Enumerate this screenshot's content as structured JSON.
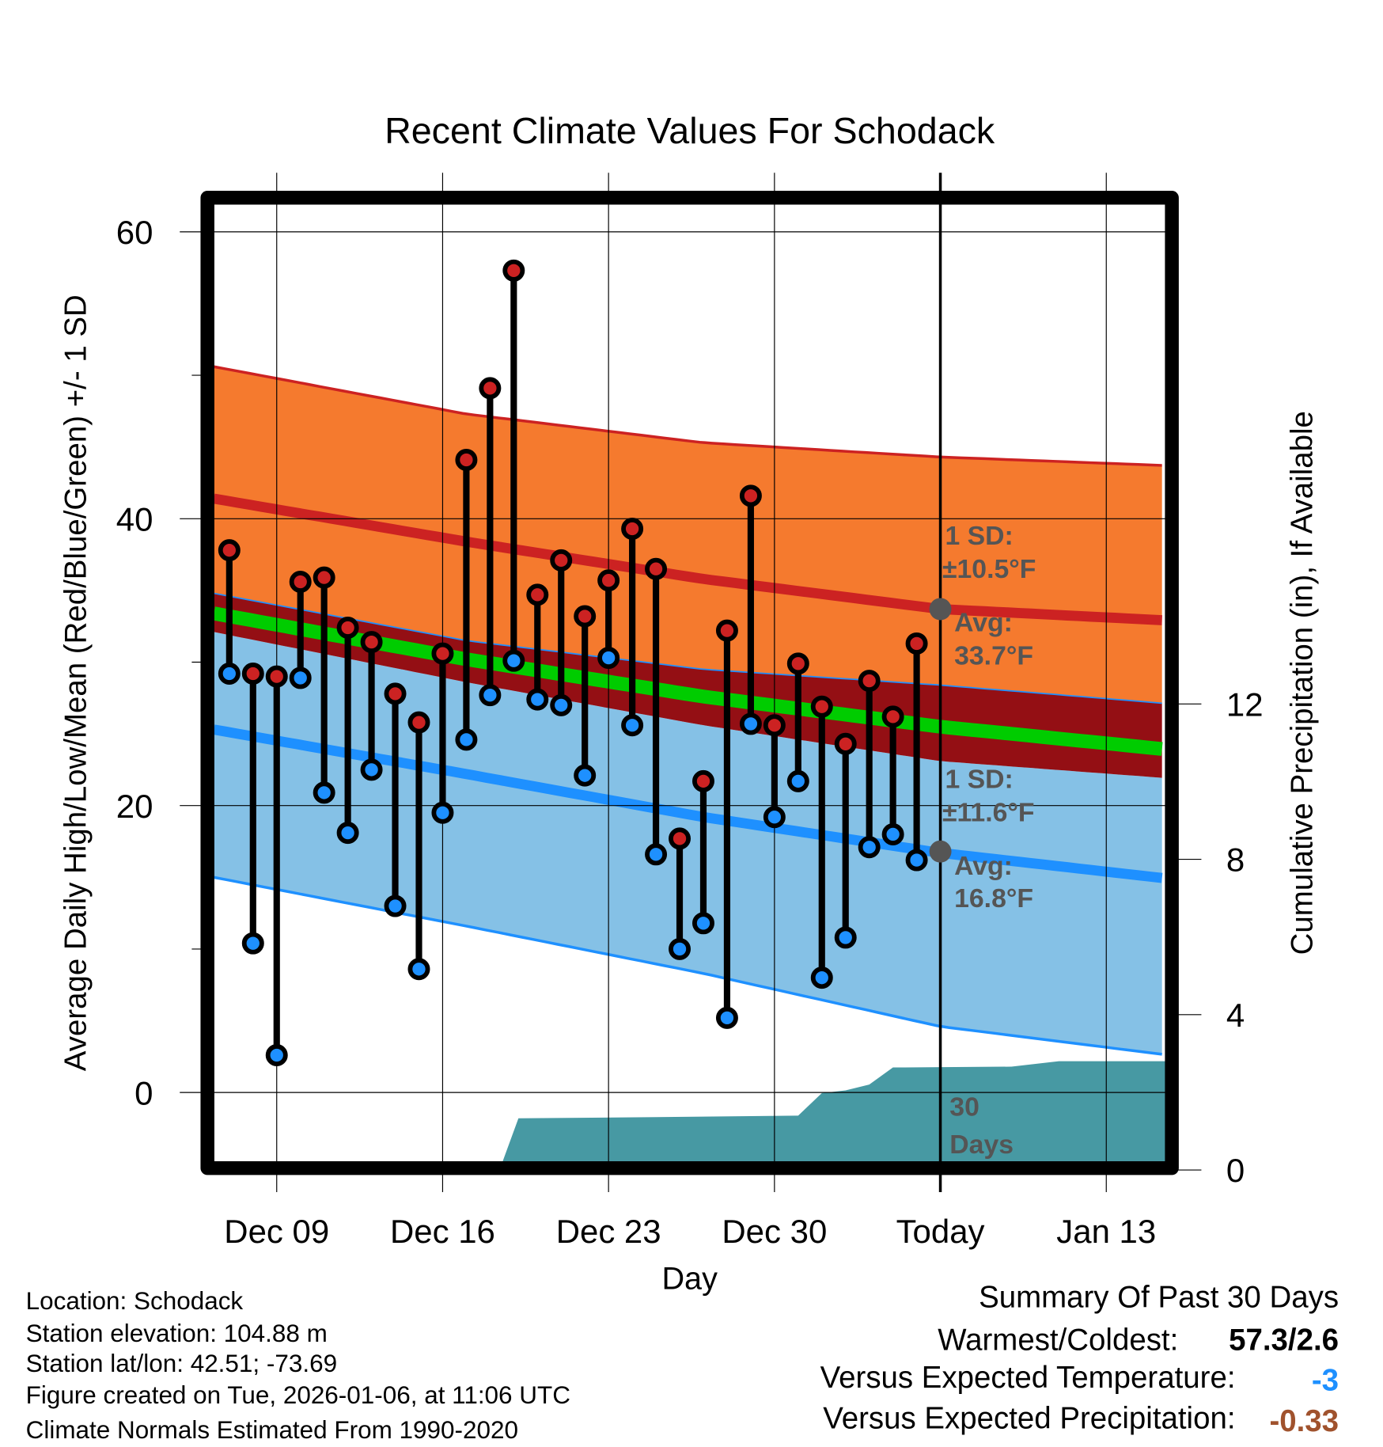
{
  "chart_data": {
    "type": "line",
    "title": "Recent Climate Values For Schodack",
    "xlabel": "Day",
    "ylabel": "Average Daily High/Low/Mean (Red/Blue/Green) +/- 1 SD",
    "y2label": "Cumulative Precipitation (in), If Available",
    "ylim": [
      -4.9,
      64
    ],
    "y2lim": [
      0,
      16.4
    ],
    "yticks": [
      "0",
      "20",
      "40",
      "60"
    ],
    "ytick_values": [
      0,
      20,
      40,
      60
    ],
    "y2ticks": [
      "0",
      "4",
      "8",
      "12"
    ],
    "y2tick_values": [
      0,
      4,
      8,
      12
    ],
    "x_day_range": [
      -0.65,
      39.65
    ],
    "xticks": [
      {
        "label": "Dec 09",
        "day": 2
      },
      {
        "label": "Dec 16",
        "day": 9
      },
      {
        "label": "Dec 23",
        "day": 16
      },
      {
        "label": "Dec 30",
        "day": 23
      },
      {
        "label": "Today",
        "day": 30
      },
      {
        "label": "Jan 13",
        "day": 37
      }
    ],
    "days": [
      "Dec 07",
      "Dec 08",
      "Dec 09",
      "Dec 10",
      "Dec 11",
      "Dec 12",
      "Dec 13",
      "Dec 14",
      "Dec 15",
      "Dec 16",
      "Dec 17",
      "Dec 18",
      "Dec 19",
      "Dec 20",
      "Dec 21",
      "Dec 22",
      "Dec 23",
      "Dec 24",
      "Dec 25",
      "Dec 26",
      "Dec 27",
      "Dec 28",
      "Dec 29",
      "Dec 30",
      "Dec 31",
      "Jan 01",
      "Jan 02",
      "Jan 03",
      "Jan 04",
      "Jan 05"
    ],
    "series": [
      {
        "name": "Daily High",
        "color": "#cc2222",
        "values": [
          37.8,
          29.2,
          29.0,
          35.6,
          35.9,
          32.4,
          31.4,
          27.8,
          25.8,
          30.6,
          44.1,
          49.1,
          57.3,
          34.7,
          37.1,
          33.2,
          35.7,
          39.3,
          36.5,
          17.7,
          21.7,
          32.2,
          41.6,
          25.6,
          29.9,
          26.9,
          24.3,
          28.7,
          26.2,
          31.3
        ]
      },
      {
        "name": "Daily Low",
        "color": "#1e90ff",
        "values": [
          29.2,
          10.4,
          2.6,
          28.9,
          20.9,
          18.1,
          22.5,
          13.0,
          8.6,
          19.5,
          24.6,
          27.7,
          30.1,
          27.4,
          27.0,
          22.1,
          30.3,
          25.6,
          16.6,
          10.0,
          11.8,
          5.2,
          25.7,
          19.2,
          21.7,
          8.0,
          10.8,
          17.1,
          18.0,
          16.2
        ]
      }
    ],
    "normals": {
      "days": [
        -0.65,
        10,
        20,
        30,
        39.65
      ],
      "high_avg": [
        41.4,
        38.4,
        35.8,
        33.7,
        32.9
      ],
      "high_plus_sd": [
        50.6,
        47.3,
        45.3,
        44.3,
        43.7
      ],
      "high_minus_sd": [
        34.8,
        31.5,
        29.5,
        28.4,
        27.1
      ],
      "mean": [
        33.4,
        30.2,
        27.6,
        25.5,
        23.9
      ],
      "low_avg": [
        25.3,
        22.2,
        19.2,
        16.7,
        14.9
      ],
      "low_plus_sd": [
        32.1,
        28.6,
        25.6,
        23.1,
        21.9
      ],
      "low_minus_sd": [
        15.0,
        11.6,
        8.3,
        4.6,
        2.6
      ]
    },
    "precip": {
      "days": [
        11.4,
        12.2,
        18,
        24,
        25,
        26,
        27,
        28,
        33,
        35,
        39.65
      ],
      "values": [
        0,
        1.33,
        1.36,
        1.4,
        1.98,
        2.05,
        2.2,
        2.64,
        2.66,
        2.8,
        2.8
      ]
    },
    "colors": {
      "high_band": "#f57a2e",
      "overlap": "#940f14",
      "low_band": "#85c1e6",
      "high_line": "#cc2222",
      "low_line": "#1e90ff",
      "mean_line": "#00cc00",
      "precip": "#4799a3",
      "annotation": "#555555"
    },
    "annotations": {
      "high_sd_label": "1 SD:",
      "high_sd_value": "±10.5°F",
      "high_avg_label": "Avg:",
      "high_avg_value": "33.7°F",
      "low_sd_label": "1 SD:",
      "low_sd_value": "±11.6°F",
      "low_avg_label": "Avg:",
      "low_avg_value": "16.8°F",
      "period_number": "30",
      "period_unit": "Days"
    },
    "today_high_avg": 33.7,
    "today_low_avg": 16.8
  },
  "info": [
    "Location: Schodack",
    "Station elevation: 104.88 m",
    "Station lat/lon: 42.51; -73.69",
    "Figure created on Tue, 2026-01-06, at 11:06 UTC",
    "Climate Normals Estimated From 1990-2020"
  ],
  "summary": {
    "title": "Summary Of Past 30 Days",
    "warm_cold_label": "Warmest/Coldest:",
    "warm_cold_value": "57.3/2.6",
    "temp_label": "Versus Expected Temperature:",
    "temp_value": "-3",
    "temp_color": "#1e90ff",
    "precip_label": "Versus Expected Precipitation:",
    "precip_value": "-0.33",
    "precip_color": "#a0522d"
  }
}
